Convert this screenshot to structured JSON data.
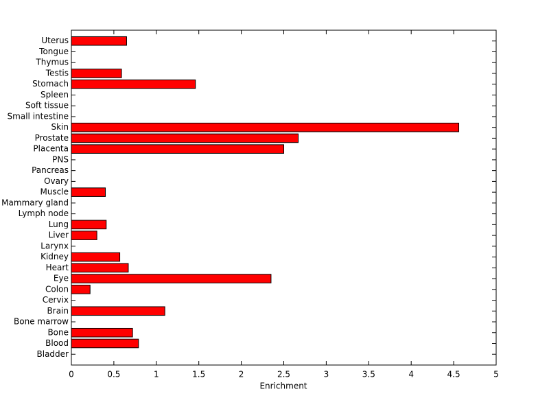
{
  "chart_data": {
    "type": "barh",
    "xlabel": "Enrichment",
    "categories": [
      "Bladder",
      "Blood",
      "Bone",
      "Bone marrow",
      "Brain",
      "Cervix",
      "Colon",
      "Eye",
      "Heart",
      "Kidney",
      "Larynx",
      "Liver",
      "Lung",
      "Lymph node",
      "Mammary gland",
      "Muscle",
      "Ovary",
      "Pancreas",
      "PNS",
      "Placenta",
      "Prostate",
      "Skin",
      "Small intestine",
      "Soft tissue",
      "Spleen",
      "Stomach",
      "Testis",
      "Thymus",
      "Tongue",
      "Uterus"
    ],
    "values": [
      0,
      0.79,
      0.72,
      0,
      1.1,
      0,
      0.22,
      2.35,
      0.67,
      0.57,
      0,
      0.3,
      0.41,
      0,
      0,
      0.4,
      0,
      0,
      0,
      2.5,
      2.67,
      4.56,
      0,
      0,
      0,
      1.46,
      0.59,
      0,
      0,
      0.65
    ],
    "color": "#ff0000",
    "xlim": [
      0,
      5
    ],
    "xticks": [
      0,
      0.5,
      1,
      1.5,
      2,
      2.5,
      3,
      3.5,
      4,
      4.5,
      5
    ]
  }
}
